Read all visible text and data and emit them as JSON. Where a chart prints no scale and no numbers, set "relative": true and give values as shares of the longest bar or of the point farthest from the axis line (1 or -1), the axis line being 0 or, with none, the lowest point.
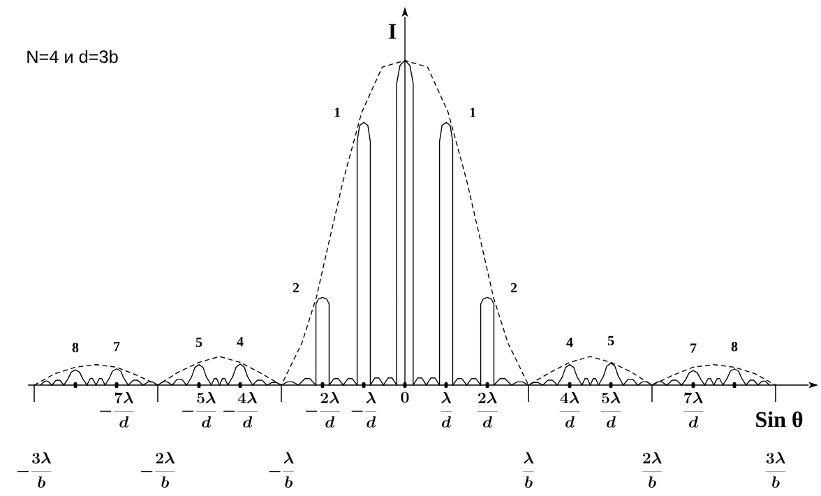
{
  "chart_data": {
    "type": "line",
    "relative": true,
    "title": "N=4 и d=3b",
    "xlabel": "Sin θ",
    "ylabel": "I",
    "xlim": [
      -9.15,
      9.8
    ],
    "xticks": [
      {
        "value": -8,
        "label": null
      },
      {
        "value": -7,
        "label": "-\\frac{7\\lambda}{d}"
      },
      {
        "value": -5,
        "label": "-\\frac{5\\lambda}{d}"
      },
      {
        "value": -4,
        "label": "-\\frac{4\\lambda}{d}"
      },
      {
        "value": -2,
        "label": "-\\frac{2\\lambda}{d}"
      },
      {
        "value": -1,
        "label": "-\\frac{\\lambda}{d}"
      },
      {
        "value": 0,
        "label": "0"
      },
      {
        "value": 1,
        "label": "\\frac{\\lambda}{d}"
      },
      {
        "value": 2,
        "label": "\\frac{2\\lambda}{d}"
      },
      {
        "value": 4,
        "label": "\\frac{4\\lambda}{d}"
      },
      {
        "value": 5,
        "label": "\\frac{5\\lambda}{d}"
      },
      {
        "value": 7,
        "label": "\\frac{7\\lambda}{d}"
      },
      {
        "value": 8,
        "label": null
      }
    ],
    "x2lim": [
      -3.05,
      3.267
    ],
    "x2ticks": [
      {
        "value": -3,
        "label": "-\\frac{3\\lambda}{b}"
      },
      {
        "value": -2,
        "label": "-\\frac{2\\lambda}{b}"
      },
      {
        "value": -1,
        "label": "-\\frac{\\lambda}{b}"
      },
      {
        "value": 1,
        "label": "\\frac{\\lambda}{b}"
      },
      {
        "value": 2,
        "label": "\\frac{2\\lambda}{b}"
      },
      {
        "value": 3,
        "label": "\\frac{3\\lambda}{b}"
      }
    ],
    "series": [
      {
        "color": "#000000",
        "line_style": "solid",
        "x": [
          -8.85,
          -8.75,
          -8.67,
          -8.57,
          -8.47,
          -8.38,
          -8.28,
          -8.18,
          -8.1,
          -8,
          -7.9,
          -7.82,
          -7.72,
          -7.64,
          -7.58,
          -7.5,
          -7.42,
          -7.36,
          -7.28,
          -7.18,
          -7.1,
          -7,
          -6.9,
          -6.82,
          -6.72,
          -6.59,
          -6.49,
          -6.36,
          -6.23,
          -6.13,
          -6,
          -5.88,
          -5.77,
          -5.65,
          -5.53,
          -5.42,
          -5.3,
          -5.18,
          -5.1,
          -5,
          -4.9,
          -4.82,
          -4.7,
          -4.63,
          -4.57,
          -4.5,
          -4.43,
          -4.37,
          -4.3,
          -4.18,
          -4.1,
          -4,
          -3.9,
          -3.82,
          -3.7,
          -3.58,
          -3.47,
          -3.35,
          -3.23,
          -3.12,
          -3,
          -2.85,
          -2.73,
          -2.58,
          -2.43,
          -2.31,
          -2.16,
          -2.16,
          -2.1,
          -2,
          -1.9,
          -1.84,
          -1.84,
          -1.72,
          -1.62,
          -1.5,
          -1.38,
          -1.28,
          -1.16,
          -1.16,
          -1.1,
          -1,
          -0.9,
          -0.84,
          -0.84,
          -0.73,
          -0.63,
          -0.52,
          -0.41,
          -0.31,
          -0.2,
          -0.2,
          -0.12,
          0,
          0.12,
          0.2,
          0.2,
          0.31,
          0.41,
          0.52,
          0.63,
          0.73,
          0.84,
          0.84,
          0.9,
          1,
          1.1,
          1.16,
          1.16,
          1.28,
          1.38,
          1.5,
          1.62,
          1.72,
          1.84,
          1.84,
          1.9,
          2,
          2.1,
          2.16,
          2.16,
          2.31,
          2.43,
          2.58,
          2.73,
          2.85,
          3,
          3.12,
          3.23,
          3.35,
          3.47,
          3.58,
          3.7,
          3.82,
          3.9,
          4,
          4.1,
          4.18,
          4.3,
          4.37,
          4.43,
          4.5,
          4.57,
          4.63,
          4.7,
          4.82,
          4.9,
          5,
          5.1,
          5.18,
          5.3,
          5.42,
          5.53,
          5.65,
          5.77,
          5.88,
          6,
          6.13,
          6.23,
          6.36,
          6.49,
          6.59,
          6.72,
          6.82,
          6.9,
          7,
          7.1,
          7.18,
          7.28,
          7.36,
          7.42,
          7.5,
          7.58,
          7.64,
          7.72,
          7.82,
          7.9,
          8,
          8.1,
          8.18,
          8.28,
          8.38,
          8.47,
          8.57,
          8.67,
          8.75,
          8.85
        ],
        "values": [
          0,
          0.012,
          0.012,
          0,
          0.015,
          0.015,
          0,
          0.019,
          0.04,
          0.047,
          0.04,
          0.019,
          0,
          0.02,
          0.02,
          0,
          0.02,
          0.02,
          0,
          0.02,
          0.043,
          0.05,
          0.043,
          0.02,
          0,
          0.015,
          0.015,
          0,
          0.01,
          0.01,
          0,
          0.01,
          0.01,
          0,
          0.018,
          0.018,
          0,
          0.025,
          0.054,
          0.063,
          0.054,
          0.025,
          0,
          0.02,
          0.02,
          0,
          0.02,
          0.02,
          0,
          0.026,
          0.055,
          0.065,
          0.055,
          0.026,
          0,
          0.015,
          0.015,
          0,
          0.008,
          0.008,
          0,
          0.01,
          0.01,
          0,
          0.02,
          0.02,
          0,
          0.25,
          0.265,
          0.27,
          0.265,
          0.25,
          0,
          0.02,
          0.02,
          0,
          0.02,
          0.02,
          0,
          0.75,
          0.8,
          0.81,
          0.8,
          0.75,
          0,
          0.022,
          0.022,
          0,
          0.022,
          0.022,
          0,
          0.93,
          0.985,
          1,
          0.985,
          0.93,
          0,
          0.022,
          0.022,
          0,
          0.022,
          0.022,
          0,
          0.75,
          0.8,
          0.81,
          0.8,
          0.75,
          0,
          0.02,
          0.02,
          0,
          0.02,
          0.02,
          0,
          0.25,
          0.265,
          0.27,
          0.265,
          0.25,
          0,
          0.02,
          0.02,
          0,
          0.01,
          0.01,
          0,
          0.008,
          0.008,
          0,
          0.015,
          0.015,
          0,
          0.025,
          0.054,
          0.063,
          0.054,
          0.025,
          0,
          0.02,
          0.02,
          0,
          0.02,
          0.02,
          0,
          0.027,
          0.058,
          0.068,
          0.058,
          0.027,
          0,
          0.018,
          0.018,
          0,
          0.01,
          0.01,
          0,
          0.01,
          0.01,
          0,
          0.015,
          0.015,
          0,
          0.018,
          0.038,
          0.045,
          0.038,
          0.018,
          0,
          0.02,
          0.02,
          0,
          0.02,
          0.02,
          0,
          0.02,
          0.043,
          0.05,
          0.043,
          0.02,
          0,
          0.015,
          0.015,
          0,
          0.012,
          0.012,
          0
        ]
      },
      {
        "color": "#000000",
        "line_style": "dashed",
        "x": [
          -9,
          -8.5,
          -8,
          -7.5,
          -7,
          -6.5,
          -6,
          -5.5,
          -5,
          -4.5,
          -4,
          -3.5,
          -3,
          -2.5,
          -2.15,
          -1.9,
          -1.5,
          -1.05,
          -0.55,
          0,
          0.55,
          1.05,
          1.5,
          1.9,
          2.15,
          2.5,
          3,
          3.5,
          4,
          4.5,
          5,
          5.5,
          6,
          6.5,
          7,
          7.5,
          8,
          8.5,
          9
        ],
        "values": [
          0,
          0.035,
          0.055,
          0.063,
          0.055,
          0.03,
          0,
          0.04,
          0.07,
          0.088,
          0.07,
          0.037,
          0,
          0.13,
          0.27,
          0.41,
          0.63,
          0.84,
          0.98,
          1,
          0.98,
          0.84,
          0.63,
          0.41,
          0.27,
          0.13,
          0,
          0.037,
          0.07,
          0.088,
          0.07,
          0.04,
          0,
          0.03,
          0.055,
          0.063,
          0.055,
          0.035,
          0
        ]
      }
    ],
    "annotations": [
      {
        "text": "8",
        "x": -8,
        "y": 0.047
      },
      {
        "text": "7",
        "x": -7,
        "y": 0.05
      },
      {
        "text": "5",
        "x": -5,
        "y": 0.063
      },
      {
        "text": "4",
        "x": -4,
        "y": 0.065
      },
      {
        "text": "2",
        "x": -2,
        "y": 0.27
      },
      {
        "text": "1",
        "x": -1,
        "y": 0.81
      },
      {
        "text": "1",
        "x": 1,
        "y": 0.81
      },
      {
        "text": "2",
        "x": 2,
        "y": 0.27
      },
      {
        "text": "4",
        "x": 4,
        "y": 0.063
      },
      {
        "text": "5",
        "x": 5,
        "y": 0.068
      },
      {
        "text": "7",
        "x": 7,
        "y": 0.045
      },
      {
        "text": "8",
        "x": 8,
        "y": 0.05
      }
    ]
  }
}
